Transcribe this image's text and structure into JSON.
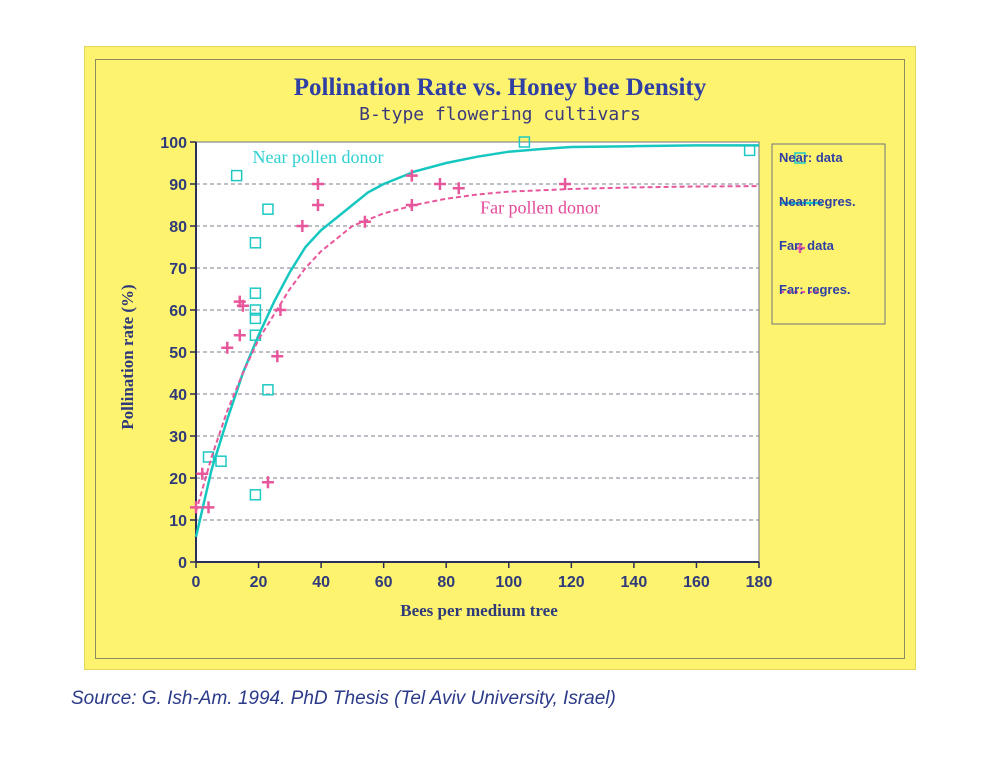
{
  "chart_data": {
    "type": "scatter",
    "title": "Pollination Rate vs. Honey bee Density",
    "subtitle": "B-type flowering cultivars",
    "xlabel": "Bees per medium tree",
    "ylabel": "Pollination rate (%)",
    "xlim": [
      0,
      180
    ],
    "ylim": [
      0,
      100
    ],
    "x_ticks": [
      0,
      20,
      40,
      60,
      80,
      100,
      120,
      140,
      160,
      180
    ],
    "y_ticks": [
      0,
      10,
      20,
      30,
      40,
      50,
      60,
      70,
      80,
      90,
      100
    ],
    "grid": "horizontal dashed",
    "legend_position": "right",
    "legend": [
      {
        "label": "Near: data",
        "marker": "square",
        "color": "#1ec9c3"
      },
      {
        "label": "Near:regres.",
        "marker": "solid-line",
        "color": "#16c7c0"
      },
      {
        "label": "Far: data",
        "marker": "plus",
        "color": "#e8579b"
      },
      {
        "label": "Far: regres.",
        "marker": "dashed-line",
        "color": "#e8579b"
      }
    ],
    "annotations": [
      {
        "text": "Near pollen donor",
        "x": 39,
        "y": 95,
        "color": "#2fd0d0"
      },
      {
        "text": "Far pollen donor",
        "x": 110,
        "y": 83,
        "color": "#e44a9a"
      }
    ],
    "series": [
      {
        "name": "Near: data",
        "kind": "scatter",
        "color": "#1ec9c3",
        "points": [
          [
            4,
            25
          ],
          [
            8,
            24
          ],
          [
            13,
            92
          ],
          [
            19,
            16
          ],
          [
            19,
            54
          ],
          [
            19,
            76
          ],
          [
            19,
            58
          ],
          [
            19,
            60
          ],
          [
            19,
            64
          ],
          [
            23,
            41
          ],
          [
            23,
            84
          ],
          [
            105,
            100
          ],
          [
            177,
            98
          ]
        ]
      },
      {
        "name": "Near:regres.",
        "kind": "line",
        "color": "#16c7c0",
        "points": [
          [
            0,
            6
          ],
          [
            5,
            22
          ],
          [
            10,
            34
          ],
          [
            15,
            45
          ],
          [
            20,
            54
          ],
          [
            25,
            62
          ],
          [
            30,
            69
          ],
          [
            35,
            75
          ],
          [
            40,
            79
          ],
          [
            45,
            82
          ],
          [
            50,
            85
          ],
          [
            55,
            88
          ],
          [
            60,
            90
          ],
          [
            70,
            93
          ],
          [
            80,
            95
          ],
          [
            90,
            96.5
          ],
          [
            100,
            97.7
          ],
          [
            110,
            98.3
          ],
          [
            120,
            98.8
          ],
          [
            140,
            99
          ],
          [
            160,
            99.2
          ],
          [
            180,
            99.2
          ]
        ]
      },
      {
        "name": "Far: data",
        "kind": "scatter",
        "color": "#e8579b",
        "points": [
          [
            0,
            13
          ],
          [
            2,
            21
          ],
          [
            4,
            13
          ],
          [
            10,
            51
          ],
          [
            14,
            62
          ],
          [
            14,
            54
          ],
          [
            15,
            61
          ],
          [
            23,
            19
          ],
          [
            26,
            49
          ],
          [
            27,
            60
          ],
          [
            34,
            80
          ],
          [
            39,
            85
          ],
          [
            39,
            90
          ],
          [
            54,
            81
          ],
          [
            69,
            92
          ],
          [
            69,
            85
          ],
          [
            78,
            90
          ],
          [
            84,
            89
          ],
          [
            118,
            90
          ]
        ]
      },
      {
        "name": "Far: regres.",
        "kind": "dashed-line",
        "color": "#e8579b",
        "points": [
          [
            0,
            12
          ],
          [
            5,
            25
          ],
          [
            10,
            36
          ],
          [
            15,
            45
          ],
          [
            20,
            53
          ],
          [
            25,
            59
          ],
          [
            30,
            65
          ],
          [
            35,
            70
          ],
          [
            40,
            74
          ],
          [
            45,
            77
          ],
          [
            50,
            80
          ],
          [
            60,
            83
          ],
          [
            70,
            85
          ],
          [
            80,
            86.5
          ],
          [
            90,
            87.5
          ],
          [
            100,
            88.2
          ],
          [
            120,
            88.8
          ],
          [
            140,
            89.2
          ],
          [
            160,
            89.4
          ],
          [
            180,
            89.5
          ]
        ]
      }
    ]
  },
  "source_note": "Source: G. Ish-Am. 1994. PhD Thesis (Tel Aviv University, Israel)"
}
